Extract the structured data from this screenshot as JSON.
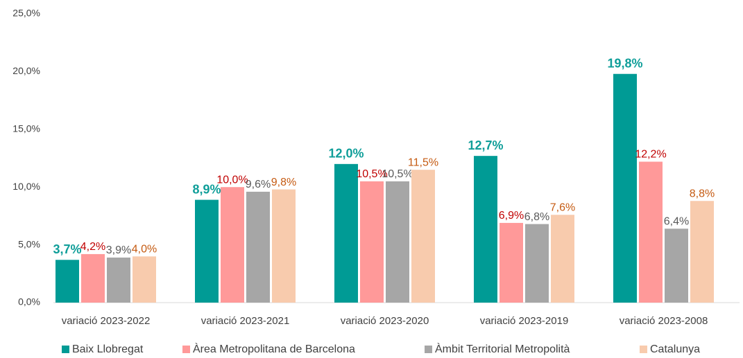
{
  "chart_data": {
    "type": "bar",
    "categories": [
      "variació 2023-2022",
      "variació 2023-2021",
      "variació 2023-2020",
      "variació 2023-2019",
      "variació 2023-2008"
    ],
    "series": [
      {
        "name": "Baix Llobregat",
        "color": "#009b95",
        "label_color": "#0f9e99",
        "values": [
          3.7,
          8.9,
          12.0,
          12.7,
          19.8
        ],
        "value_labels": [
          "3,7%",
          "8,9%",
          "12,0%",
          "12,7%",
          "19,8%"
        ]
      },
      {
        "name": "Àrea Metropolitana de Barcelona",
        "color": "#ff9999",
        "label_color": "#c00000",
        "values": [
          4.2,
          10.0,
          10.5,
          6.9,
          12.2
        ],
        "value_labels": [
          "4,2%",
          "10,0%",
          "10,5%",
          "6,9%",
          "12,2%"
        ]
      },
      {
        "name": "Àmbit Territorial Metropolità",
        "color": "#a6a6a6",
        "label_color": "#595959",
        "values": [
          3.9,
          9.6,
          10.5,
          6.8,
          6.4
        ],
        "value_labels": [
          "3,9%",
          "9,6%",
          "10,5%",
          "6,8%",
          "6,4%"
        ]
      },
      {
        "name": "Catalunya",
        "color": "#f8cbad",
        "label_color": "#c55a11",
        "values": [
          4.0,
          9.8,
          11.5,
          7.6,
          8.8
        ],
        "value_labels": [
          "4,0%",
          "9,8%",
          "11,5%",
          "7,6%",
          "8,8%"
        ]
      }
    ],
    "ylim": [
      0,
      25
    ],
    "yticks": [
      {
        "value": 0,
        "label": "0,0%"
      },
      {
        "value": 5,
        "label": "5,0%"
      },
      {
        "value": 10,
        "label": "10,0%"
      },
      {
        "value": 15,
        "label": "15,0%"
      },
      {
        "value": 20,
        "label": "20,0%"
      },
      {
        "value": 25,
        "label": "25,0%"
      }
    ],
    "grid": false,
    "legend": "bottom"
  }
}
